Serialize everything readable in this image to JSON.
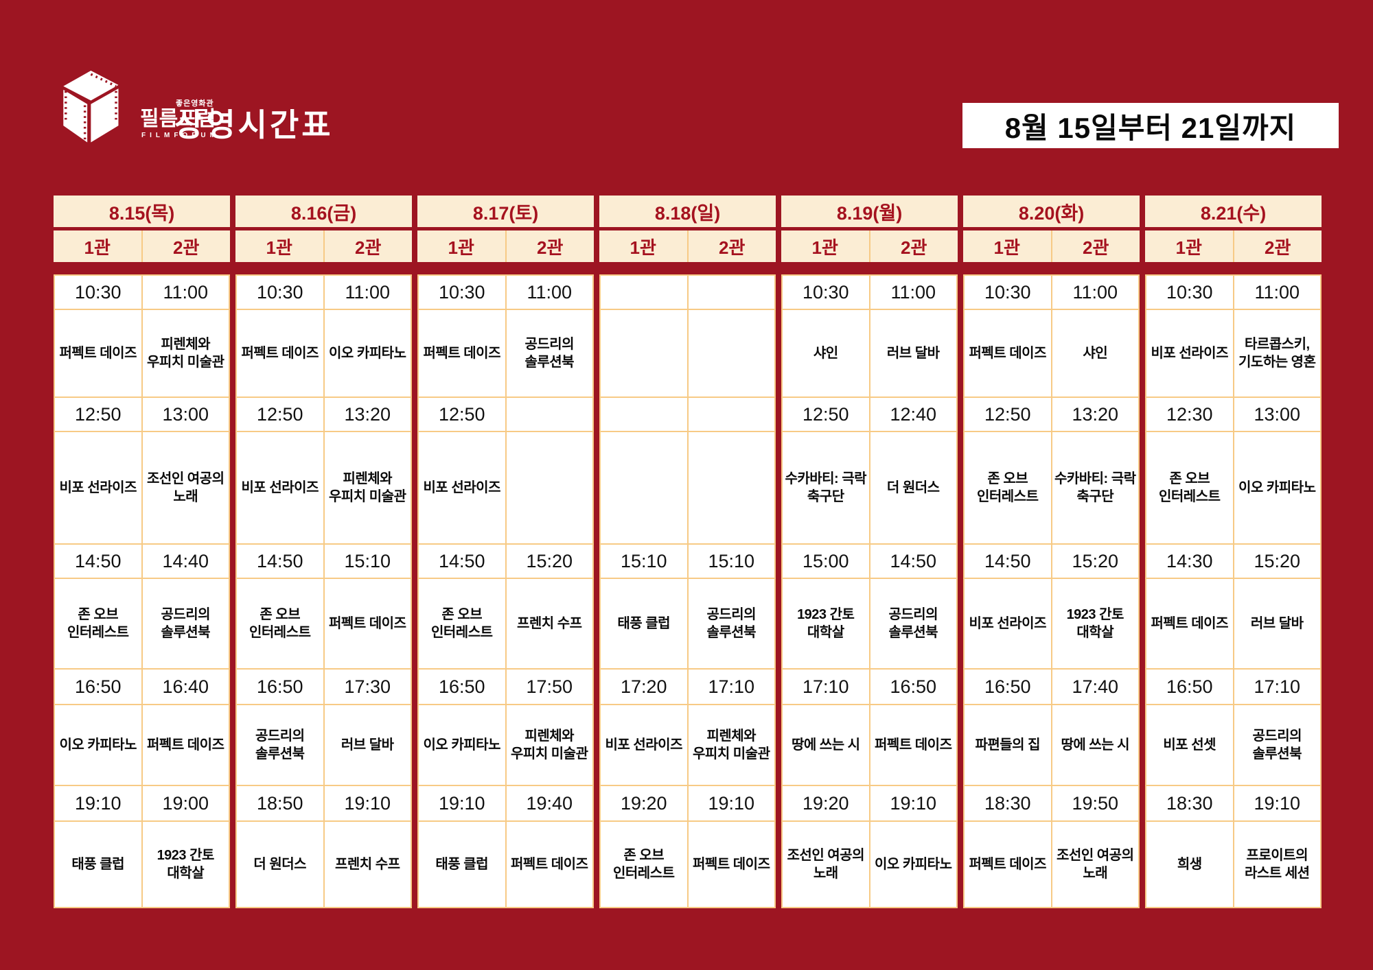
{
  "page": {
    "title": "상영시간표",
    "logo": {
      "kicker": "좋은영화관",
      "name": "필름포럼",
      "sub": "FILMFORUM"
    },
    "date_range": "8월 15일부터 21일까지"
  },
  "colors": {
    "background_red": "#9D1522",
    "header_cream": "#FBEDD4",
    "header_text_red": "#A5121F",
    "grid_line_orange": "#F7CA85",
    "cell_white": "#FFFFFF",
    "text_black": "#0A0A0A"
  },
  "schedule": {
    "days": [
      {
        "date": "8.15(목)",
        "screens": [
          {
            "label": "1관",
            "slots": [
              {
                "time": "10:30",
                "movie": "퍼펙트 데이즈"
              },
              {
                "time": "12:50",
                "movie": "비포 선라이즈"
              },
              {
                "time": "14:50",
                "movie": "존 오브 인터레스트"
              },
              {
                "time": "16:50",
                "movie": "이오 카피타노"
              },
              {
                "time": "19:10",
                "movie": "태풍 클럽"
              }
            ]
          },
          {
            "label": "2관",
            "slots": [
              {
                "time": "11:00",
                "movie": "피렌체와 우피치 미술관"
              },
              {
                "time": "13:00",
                "movie": "조선인 여공의 노래"
              },
              {
                "time": "14:40",
                "movie": "공드리의 솔루션북"
              },
              {
                "time": "16:40",
                "movie": "퍼펙트 데이즈"
              },
              {
                "time": "19:00",
                "movie": "1923 간토 대학살"
              }
            ]
          }
        ]
      },
      {
        "date": "8.16(금)",
        "screens": [
          {
            "label": "1관",
            "slots": [
              {
                "time": "10:30",
                "movie": "퍼펙트 데이즈"
              },
              {
                "time": "12:50",
                "movie": "비포 선라이즈"
              },
              {
                "time": "14:50",
                "movie": "존 오브 인터레스트"
              },
              {
                "time": "16:50",
                "movie": "공드리의 솔루션북"
              },
              {
                "time": "18:50",
                "movie": "더 원더스"
              }
            ]
          },
          {
            "label": "2관",
            "slots": [
              {
                "time": "11:00",
                "movie": "이오 카피타노"
              },
              {
                "time": "13:20",
                "movie": "피렌체와 우피치 미술관"
              },
              {
                "time": "15:10",
                "movie": "퍼펙트 데이즈"
              },
              {
                "time": "17:30",
                "movie": "러브 달바"
              },
              {
                "time": "19:10",
                "movie": "프렌치 수프"
              }
            ]
          }
        ]
      },
      {
        "date": "8.17(토)",
        "screens": [
          {
            "label": "1관",
            "slots": [
              {
                "time": "10:30",
                "movie": "퍼펙트 데이즈"
              },
              {
                "time": "12:50",
                "movie": "비포 선라이즈"
              },
              {
                "time": "14:50",
                "movie": "존 오브 인터레스트"
              },
              {
                "time": "16:50",
                "movie": "이오 카피타노"
              },
              {
                "time": "19:10",
                "movie": "태풍 클럽"
              }
            ]
          },
          {
            "label": "2관",
            "slots": [
              {
                "time": "11:00",
                "movie": "공드리의 솔루션북"
              },
              {
                "time": "",
                "movie": ""
              },
              {
                "time": "15:20",
                "movie": "프렌치 수프"
              },
              {
                "time": "17:50",
                "movie": "피렌체와 우피치 미술관"
              },
              {
                "time": "19:40",
                "movie": "퍼펙트 데이즈"
              }
            ]
          }
        ]
      },
      {
        "date": "8.18(일)",
        "screens": [
          {
            "label": "1관",
            "slots": [
              {
                "time": "",
                "movie": ""
              },
              {
                "time": "",
                "movie": ""
              },
              {
                "time": "15:10",
                "movie": "태풍 클럽"
              },
              {
                "time": "17:20",
                "movie": "비포 선라이즈"
              },
              {
                "time": "19:20",
                "movie": "존 오브 인터레스트"
              }
            ]
          },
          {
            "label": "2관",
            "slots": [
              {
                "time": "",
                "movie": ""
              },
              {
                "time": "",
                "movie": ""
              },
              {
                "time": "15:10",
                "movie": "공드리의 솔루션북"
              },
              {
                "time": "17:10",
                "movie": "피렌체와 우피치 미술관"
              },
              {
                "time": "19:10",
                "movie": "퍼펙트 데이즈"
              }
            ]
          }
        ]
      },
      {
        "date": "8.19(월)",
        "screens": [
          {
            "label": "1관",
            "slots": [
              {
                "time": "10:30",
                "movie": "샤인"
              },
              {
                "time": "12:50",
                "movie": "수카바티: 극락 축구단"
              },
              {
                "time": "15:00",
                "movie": "1923 간토 대학살"
              },
              {
                "time": "17:10",
                "movie": "땅에 쓰는 시"
              },
              {
                "time": "19:20",
                "movie": "조선인 여공의 노래"
              }
            ]
          },
          {
            "label": "2관",
            "slots": [
              {
                "time": "11:00",
                "movie": "러브 달바"
              },
              {
                "time": "12:40",
                "movie": "더 원더스"
              },
              {
                "time": "14:50",
                "movie": "공드리의 솔루션북"
              },
              {
                "time": "16:50",
                "movie": "퍼펙트 데이즈"
              },
              {
                "time": "19:10",
                "movie": "이오 카피타노"
              }
            ]
          }
        ]
      },
      {
        "date": "8.20(화)",
        "screens": [
          {
            "label": "1관",
            "slots": [
              {
                "time": "10:30",
                "movie": "퍼펙트 데이즈"
              },
              {
                "time": "12:50",
                "movie": "존 오브 인터레스트"
              },
              {
                "time": "14:50",
                "movie": "비포 선라이즈"
              },
              {
                "time": "16:50",
                "movie": "파편들의 집"
              },
              {
                "time": "18:30",
                "movie": "퍼펙트 데이즈"
              }
            ]
          },
          {
            "label": "2관",
            "slots": [
              {
                "time": "11:00",
                "movie": "샤인"
              },
              {
                "time": "13:20",
                "movie": "수카바티: 극락 축구단"
              },
              {
                "time": "15:20",
                "movie": "1923 간토 대학살"
              },
              {
                "time": "17:40",
                "movie": "땅에 쓰는 시"
              },
              {
                "time": "19:50",
                "movie": "조선인 여공의 노래"
              }
            ]
          }
        ]
      },
      {
        "date": "8.21(수)",
        "screens": [
          {
            "label": "1관",
            "slots": [
              {
                "time": "10:30",
                "movie": "비포 선라이즈"
              },
              {
                "time": "12:30",
                "movie": "존 오브 인터레스트"
              },
              {
                "time": "14:30",
                "movie": "퍼펙트 데이즈"
              },
              {
                "time": "16:50",
                "movie": "비포 선셋"
              },
              {
                "time": "18:30",
                "movie": "희생"
              }
            ]
          },
          {
            "label": "2관",
            "slots": [
              {
                "time": "11:00",
                "movie": "타르콥스키, 기도하는 영혼"
              },
              {
                "time": "13:00",
                "movie": "이오 카피타노"
              },
              {
                "time": "15:20",
                "movie": "러브 달바"
              },
              {
                "time": "17:10",
                "movie": "공드리의 솔루션북"
              },
              {
                "time": "19:10",
                "movie": "프로이트의 라스트 세션"
              }
            ]
          }
        ]
      }
    ]
  }
}
